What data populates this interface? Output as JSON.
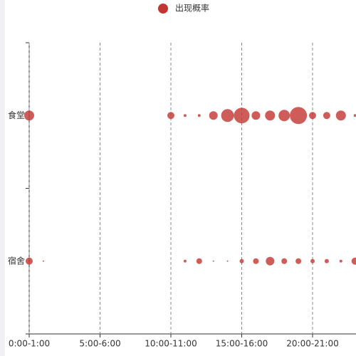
{
  "chart_data": {
    "type": "bubble",
    "legend": {
      "position": "top"
    },
    "categories": [
      "0:00-1:00",
      null,
      null,
      null,
      null,
      "5:00-6:00",
      null,
      null,
      null,
      null,
      "10:00-11:00",
      null,
      null,
      null,
      null,
      "15:00-16:00",
      null,
      null,
      null,
      null,
      "20:00-21:00",
      null,
      null,
      null
    ],
    "y_categories": [
      "宿舍",
      "食堂"
    ],
    "series": [
      {
        "name": "出现概率",
        "color": "#c23531",
        "values": [
          [
            5,
            1,
            null,
            null,
            null,
            null,
            null,
            null,
            null,
            null,
            null,
            2,
            4,
            1,
            1,
            3,
            4,
            6,
            4,
            4,
            3,
            3,
            2,
            5
          ],
          [
            7,
            null,
            null,
            null,
            null,
            null,
            null,
            null,
            null,
            null,
            5,
            2,
            2,
            6,
            9,
            11,
            6,
            7,
            8,
            12,
            5,
            5,
            7,
            2
          ]
        ]
      }
    ]
  }
}
